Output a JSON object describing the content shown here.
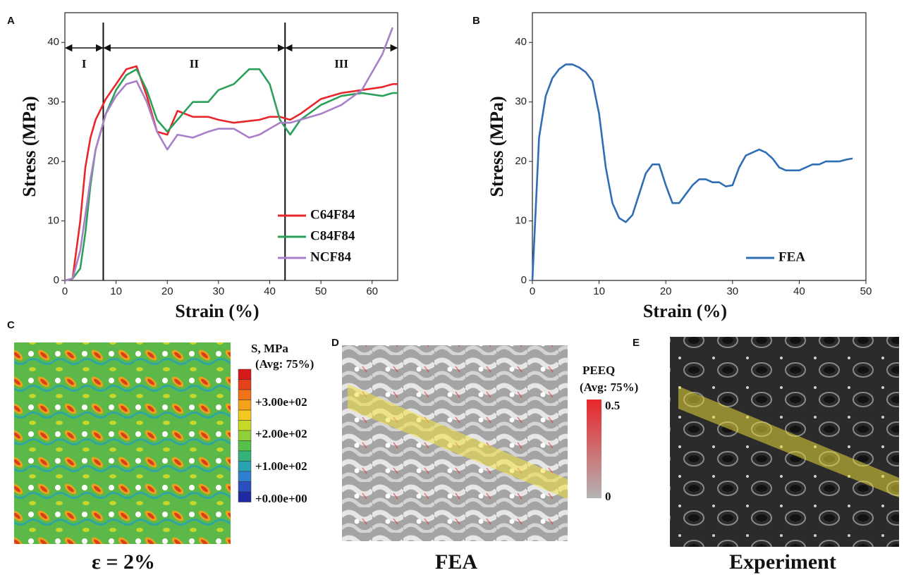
{
  "chart_data": [
    {
      "type": "line",
      "panel": "A",
      "xlabel": "Strain (%)",
      "ylabel": "Stress (MPa)",
      "xlim": [
        0,
        65
      ],
      "xticks": [
        0,
        10,
        20,
        30,
        40,
        50,
        60
      ],
      "ylim": [
        0,
        45
      ],
      "yticks": [
        0,
        10,
        20,
        30,
        40
      ],
      "legend": "lower right",
      "regions": [
        {
          "label": "I",
          "start": 0,
          "end": 7.5
        },
        {
          "label": "II",
          "start": 7.5,
          "end": 43
        },
        {
          "label": "III",
          "start": 43,
          "end": 65
        }
      ],
      "x": [
        0,
        1.5,
        3,
        4,
        5,
        6,
        8,
        10,
        12,
        14,
        16,
        18,
        20,
        22,
        25,
        28,
        30,
        33,
        36,
        38,
        40,
        42,
        44,
        46,
        50,
        54,
        58,
        62,
        64,
        65
      ],
      "series": [
        {
          "name": "C64F84",
          "color": "#e8262b",
          "values": [
            0,
            0.3,
            10,
            19,
            24,
            27,
            30.5,
            33,
            35.5,
            36,
            31,
            25,
            24.5,
            28.5,
            27.5,
            27.5,
            27,
            26.5,
            26.8,
            27,
            27.5,
            27.5,
            27,
            28,
            30.5,
            31.5,
            32,
            32.5,
            33,
            33
          ]
        },
        {
          "name": "C84F84",
          "color": "#2ca05a",
          "values": [
            0,
            0.3,
            2,
            8,
            16,
            22,
            28,
            32,
            34.5,
            35.5,
            32,
            27,
            25,
            27,
            30,
            30,
            32,
            33,
            35.5,
            35.5,
            33,
            27,
            24.5,
            27,
            29.5,
            31,
            31.5,
            31,
            31.5,
            31.5
          ]
        },
        {
          "name": "NCF84",
          "color": "#a980c8",
          "values": [
            0,
            0.3,
            5,
            11,
            17,
            22,
            28,
            31,
            33,
            33.5,
            30,
            25,
            22,
            24.5,
            24,
            25,
            25.5,
            25.5,
            24,
            24.5,
            25.5,
            26.5,
            26.5,
            27,
            28,
            29.5,
            32,
            38,
            42.5,
            null
          ]
        }
      ]
    },
    {
      "type": "line",
      "panel": "B",
      "xlabel": "Strain (%)",
      "ylabel": "Stress (MPa)",
      "xlim": [
        0,
        50
      ],
      "xticks": [
        0,
        10,
        20,
        30,
        40,
        50
      ],
      "ylim": [
        0,
        45
      ],
      "yticks": [
        0,
        10,
        20,
        30,
        40
      ],
      "legend": "lower right",
      "x": [
        0,
        0.5,
        1,
        2,
        3,
        4,
        5,
        6,
        7,
        8,
        9,
        10,
        11,
        12,
        13,
        14,
        15,
        16,
        17,
        18,
        19,
        20,
        21,
        22,
        23,
        24,
        25,
        26,
        27,
        28,
        29,
        30,
        31,
        32,
        33,
        34,
        35,
        36,
        37,
        38,
        39,
        40,
        41,
        42,
        43,
        44,
        45,
        46,
        47,
        48
      ],
      "series": [
        {
          "name": "FEA",
          "color": "#2f6db5",
          "values": [
            0,
            12,
            24,
            31,
            34,
            35.5,
            36.3,
            36.3,
            35.8,
            35,
            33.5,
            28,
            19,
            13,
            10.5,
            9.8,
            11,
            14.5,
            18,
            19.5,
            19.5,
            16,
            13,
            13,
            14.5,
            16,
            17,
            17,
            16.5,
            16.5,
            15.8,
            16,
            19,
            21,
            21.5,
            22,
            21.5,
            20.5,
            19,
            18.5,
            18.5,
            18.5,
            19,
            19.5,
            19.5,
            20,
            20,
            20,
            20.3,
            20.5
          ]
        }
      ]
    }
  ],
  "panels": {
    "C": {
      "letter": "C",
      "colorbar_title": "S, MPa",
      "colorbar_subtitle": "(Avg:  75%)",
      "colorbar_labels": [
        "+3.00e+02",
        "+2.00e+02",
        "+1.00e+02",
        "+0.00e+00"
      ],
      "caption": "ε = 2%"
    },
    "D": {
      "letter": "D",
      "colorbar_title": "PEEQ",
      "colorbar_subtitle": "(Avg: 75%)",
      "colorbar_labels": [
        "0.5",
        "0"
      ],
      "caption": "FEA"
    },
    "E": {
      "letter": "E",
      "caption": "Experiment"
    }
  }
}
